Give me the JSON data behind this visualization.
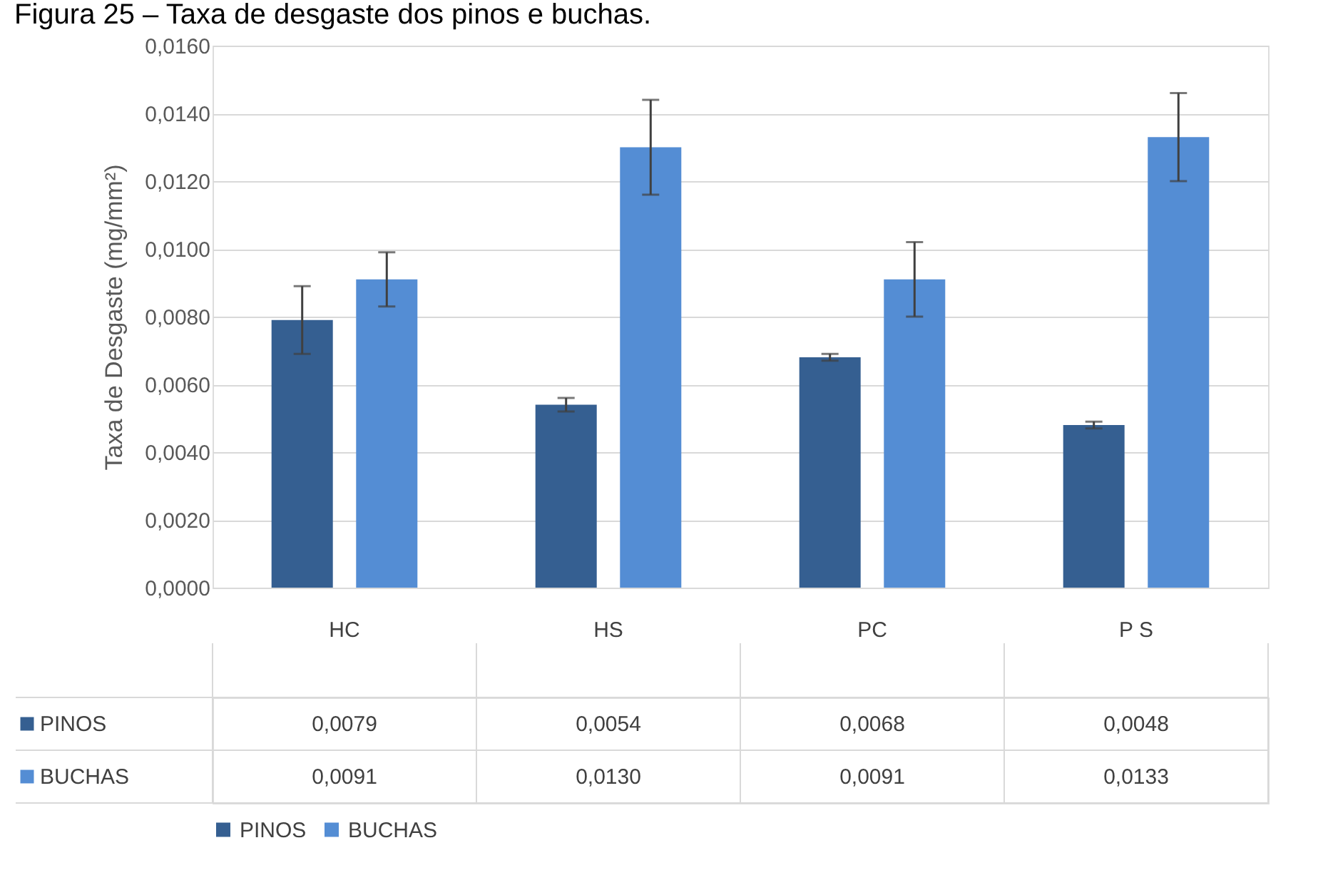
{
  "chart_data": {
    "type": "bar",
    "title": "Figura 25 – Taxa de desgaste dos pinos e buchas.",
    "ylabel": "Taxa de Desgaste (mg/mm²)",
    "categories": [
      "HC",
      "HS",
      "PC",
      "P S"
    ],
    "series": [
      {
        "name": "PINOS",
        "color": "#355f91",
        "values": [
          0.0079,
          0.0054,
          0.0068,
          0.0048
        ],
        "errors": [
          0.001,
          0.0002,
          0.0001,
          0.0001
        ],
        "value_labels": [
          "0,0079",
          "0,0054",
          "0,0068",
          "0,0048"
        ]
      },
      {
        "name": "BUCHAS",
        "color": "#548dd4",
        "values": [
          0.0091,
          0.013,
          0.0091,
          0.0133
        ],
        "errors": [
          0.0008,
          0.0014,
          0.0011,
          0.0013
        ],
        "value_labels": [
          "0,0091",
          "0,0130",
          "0,0091",
          "0,0133"
        ]
      }
    ],
    "ylim": [
      0,
      0.016
    ],
    "yticks": [
      {
        "value": 0,
        "label": "0,0000"
      },
      {
        "value": 0.002,
        "label": "0,0020"
      },
      {
        "value": 0.004,
        "label": "0,0040"
      },
      {
        "value": 0.006,
        "label": "0,0060"
      },
      {
        "value": 0.008,
        "label": "0,0080"
      },
      {
        "value": 0.01,
        "label": "0,0100"
      },
      {
        "value": 0.012,
        "label": "0,0120"
      },
      {
        "value": 0.014,
        "label": "0,0140"
      },
      {
        "value": 0.016,
        "label": "0,0160"
      }
    ],
    "grid": "y",
    "legend": "bottom"
  }
}
